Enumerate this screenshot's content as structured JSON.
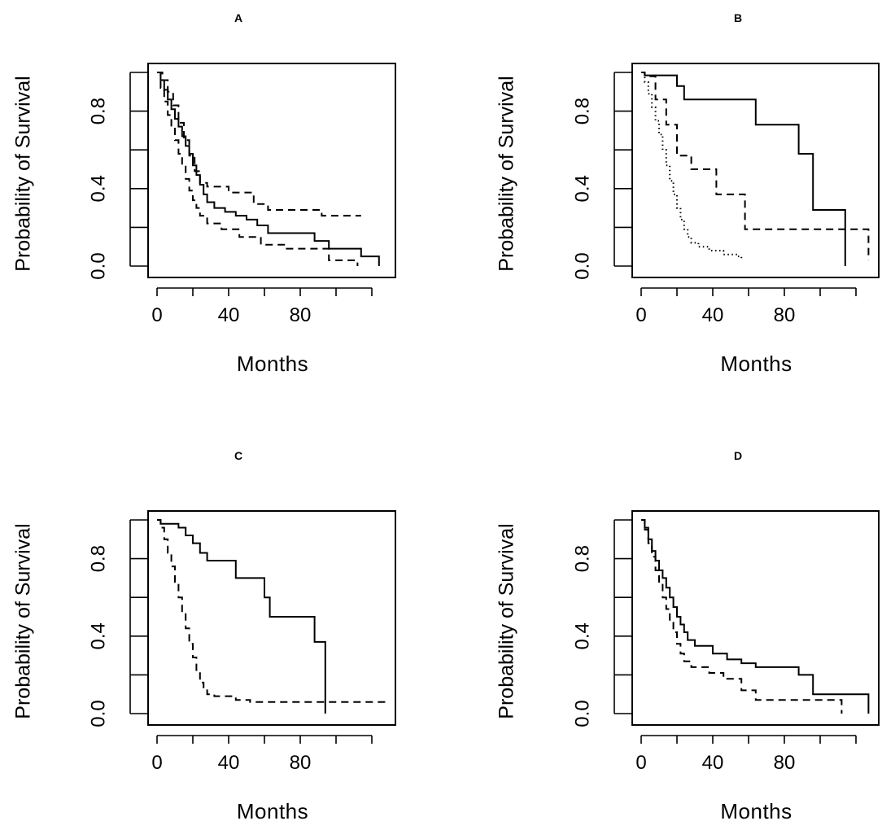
{
  "chart_data": [
    {
      "type": "line",
      "title": "A",
      "xlabel": "Months",
      "ylabel": "Probability of Survival",
      "xlim": [
        0,
        120
      ],
      "ylim": [
        0,
        1
      ],
      "xticks": [
        0,
        40,
        80
      ],
      "xtick_labels": [
        "0",
        "40",
        "80"
      ],
      "yticks": [
        0,
        0.2,
        0.4,
        0.6,
        0.8,
        1.0
      ],
      "ytick_labels": [
        "0.0",
        "0.4",
        "0.8"
      ],
      "series": [
        {
          "name": "solid",
          "style": "solid",
          "x": [
            0,
            2,
            4,
            6,
            8,
            10,
            12,
            14,
            16,
            18,
            20,
            22,
            24,
            26,
            28,
            32,
            38,
            44,
            50,
            56,
            62,
            74,
            88,
            96,
            114,
            124,
            124
          ],
          "y": [
            1.0,
            0.96,
            0.91,
            0.86,
            0.81,
            0.76,
            0.72,
            0.67,
            0.62,
            0.58,
            0.52,
            0.47,
            0.42,
            0.37,
            0.33,
            0.3,
            0.28,
            0.26,
            0.24,
            0.21,
            0.17,
            0.17,
            0.13,
            0.09,
            0.05,
            0.05,
            0.0
          ]
        },
        {
          "name": "upper",
          "style": "dashed",
          "x": [
            0,
            3,
            6,
            9,
            12,
            15,
            18,
            21,
            24,
            28,
            40,
            54,
            62,
            92,
            114
          ],
          "y": [
            1.0,
            0.96,
            0.9,
            0.83,
            0.74,
            0.65,
            0.57,
            0.49,
            0.43,
            0.41,
            0.38,
            0.32,
            0.29,
            0.26,
            0.26
          ]
        },
        {
          "name": "lower",
          "style": "dashed",
          "x": [
            0,
            2,
            4,
            6,
            8,
            10,
            12,
            14,
            16,
            18,
            20,
            22,
            24,
            28,
            36,
            46,
            58,
            72,
            96,
            112,
            112
          ],
          "y": [
            1.0,
            0.92,
            0.85,
            0.78,
            0.71,
            0.65,
            0.58,
            0.52,
            0.45,
            0.39,
            0.34,
            0.3,
            0.26,
            0.22,
            0.19,
            0.15,
            0.11,
            0.09,
            0.03,
            0.03,
            0.0
          ]
        }
      ]
    },
    {
      "type": "line",
      "title": "B",
      "xlabel": "Months",
      "ylabel": "Probability of Survival",
      "xlim": [
        0,
        120
      ],
      "ylim": [
        0,
        1
      ],
      "xticks": [
        0,
        40,
        80
      ],
      "xtick_labels": [
        "0",
        "40",
        "80"
      ],
      "yticks": [
        0,
        0.2,
        0.4,
        0.6,
        0.8,
        1.0
      ],
      "ytick_labels": [
        "0.0",
        "0.4",
        "0.8"
      ],
      "series": [
        {
          "name": "solid",
          "style": "solid",
          "x": [
            0,
            2,
            20,
            24,
            64,
            88,
            96,
            114,
            114
          ],
          "y": [
            1.0,
            0.985,
            0.93,
            0.86,
            0.73,
            0.58,
            0.29,
            0.29,
            0.0
          ]
        },
        {
          "name": "dashed",
          "style": "dashed",
          "x": [
            0,
            2,
            8,
            14,
            20,
            28,
            42,
            58,
            127,
            127
          ],
          "y": [
            1.0,
            0.98,
            0.86,
            0.73,
            0.57,
            0.5,
            0.37,
            0.19,
            0.19,
            0.03
          ]
        },
        {
          "name": "dotted",
          "style": "dotted",
          "x": [
            0,
            2,
            4,
            6,
            8,
            10,
            12,
            14,
            16,
            18,
            20,
            22,
            24,
            26,
            28,
            32,
            38,
            46,
            54,
            56
          ],
          "y": [
            1.0,
            0.95,
            0.89,
            0.82,
            0.75,
            0.68,
            0.6,
            0.52,
            0.44,
            0.37,
            0.3,
            0.24,
            0.19,
            0.15,
            0.12,
            0.1,
            0.08,
            0.06,
            0.05,
            0.04
          ]
        }
      ]
    },
    {
      "type": "line",
      "title": "C",
      "xlabel": "Months",
      "ylabel": "Probability of Survival",
      "xlim": [
        0,
        120
      ],
      "ylim": [
        0,
        1
      ],
      "xticks": [
        0,
        40,
        80
      ],
      "xtick_labels": [
        "0",
        "40",
        "80"
      ],
      "yticks": [
        0,
        0.2,
        0.4,
        0.6,
        0.8,
        1.0
      ],
      "ytick_labels": [
        "0.0",
        "0.4",
        "0.8"
      ],
      "series": [
        {
          "name": "solid",
          "style": "solid",
          "x": [
            0,
            2,
            12,
            16,
            20,
            24,
            28,
            44,
            60,
            63,
            66,
            88,
            94,
            94
          ],
          "y": [
            1.0,
            0.98,
            0.96,
            0.92,
            0.88,
            0.83,
            0.79,
            0.7,
            0.6,
            0.5,
            0.5,
            0.37,
            0.37,
            0.0
          ]
        },
        {
          "name": "dashed",
          "style": "dashed",
          "x": [
            0,
            2,
            4,
            6,
            8,
            10,
            12,
            14,
            16,
            18,
            20,
            22,
            24,
            26,
            28,
            32,
            44,
            52,
            127
          ],
          "y": [
            1.0,
            0.96,
            0.9,
            0.83,
            0.76,
            0.68,
            0.6,
            0.52,
            0.44,
            0.36,
            0.29,
            0.22,
            0.16,
            0.12,
            0.1,
            0.09,
            0.07,
            0.06,
            0.05
          ]
        }
      ]
    },
    {
      "type": "line",
      "title": "D",
      "xlabel": "Months",
      "ylabel": "Probability of Survival",
      "xlim": [
        0,
        120
      ],
      "ylim": [
        0,
        1
      ],
      "xticks": [
        0,
        40,
        80
      ],
      "xtick_labels": [
        "0",
        "40",
        "80"
      ],
      "yticks": [
        0,
        0.2,
        0.4,
        0.6,
        0.8,
        1.0
      ],
      "ytick_labels": [
        "0.0",
        "0.4",
        "0.8"
      ],
      "series": [
        {
          "name": "solid",
          "style": "solid",
          "x": [
            0,
            2,
            4,
            6,
            8,
            10,
            12,
            14,
            16,
            18,
            20,
            22,
            24,
            26,
            30,
            40,
            48,
            56,
            64,
            82,
            88,
            96,
            104,
            127,
            127
          ],
          "y": [
            1.0,
            0.96,
            0.9,
            0.84,
            0.79,
            0.74,
            0.7,
            0.65,
            0.6,
            0.55,
            0.5,
            0.46,
            0.42,
            0.38,
            0.35,
            0.31,
            0.28,
            0.26,
            0.24,
            0.24,
            0.2,
            0.1,
            0.1,
            0.1,
            0.0
          ]
        },
        {
          "name": "dashed",
          "style": "dashed",
          "x": [
            0,
            2,
            4,
            6,
            8,
            10,
            12,
            14,
            16,
            18,
            20,
            22,
            24,
            28,
            38,
            46,
            56,
            64,
            88,
            112,
            112
          ],
          "y": [
            1.0,
            0.95,
            0.88,
            0.81,
            0.74,
            0.67,
            0.6,
            0.54,
            0.48,
            0.42,
            0.36,
            0.31,
            0.27,
            0.24,
            0.21,
            0.18,
            0.12,
            0.07,
            0.07,
            0.07,
            0.0
          ]
        }
      ]
    }
  ]
}
